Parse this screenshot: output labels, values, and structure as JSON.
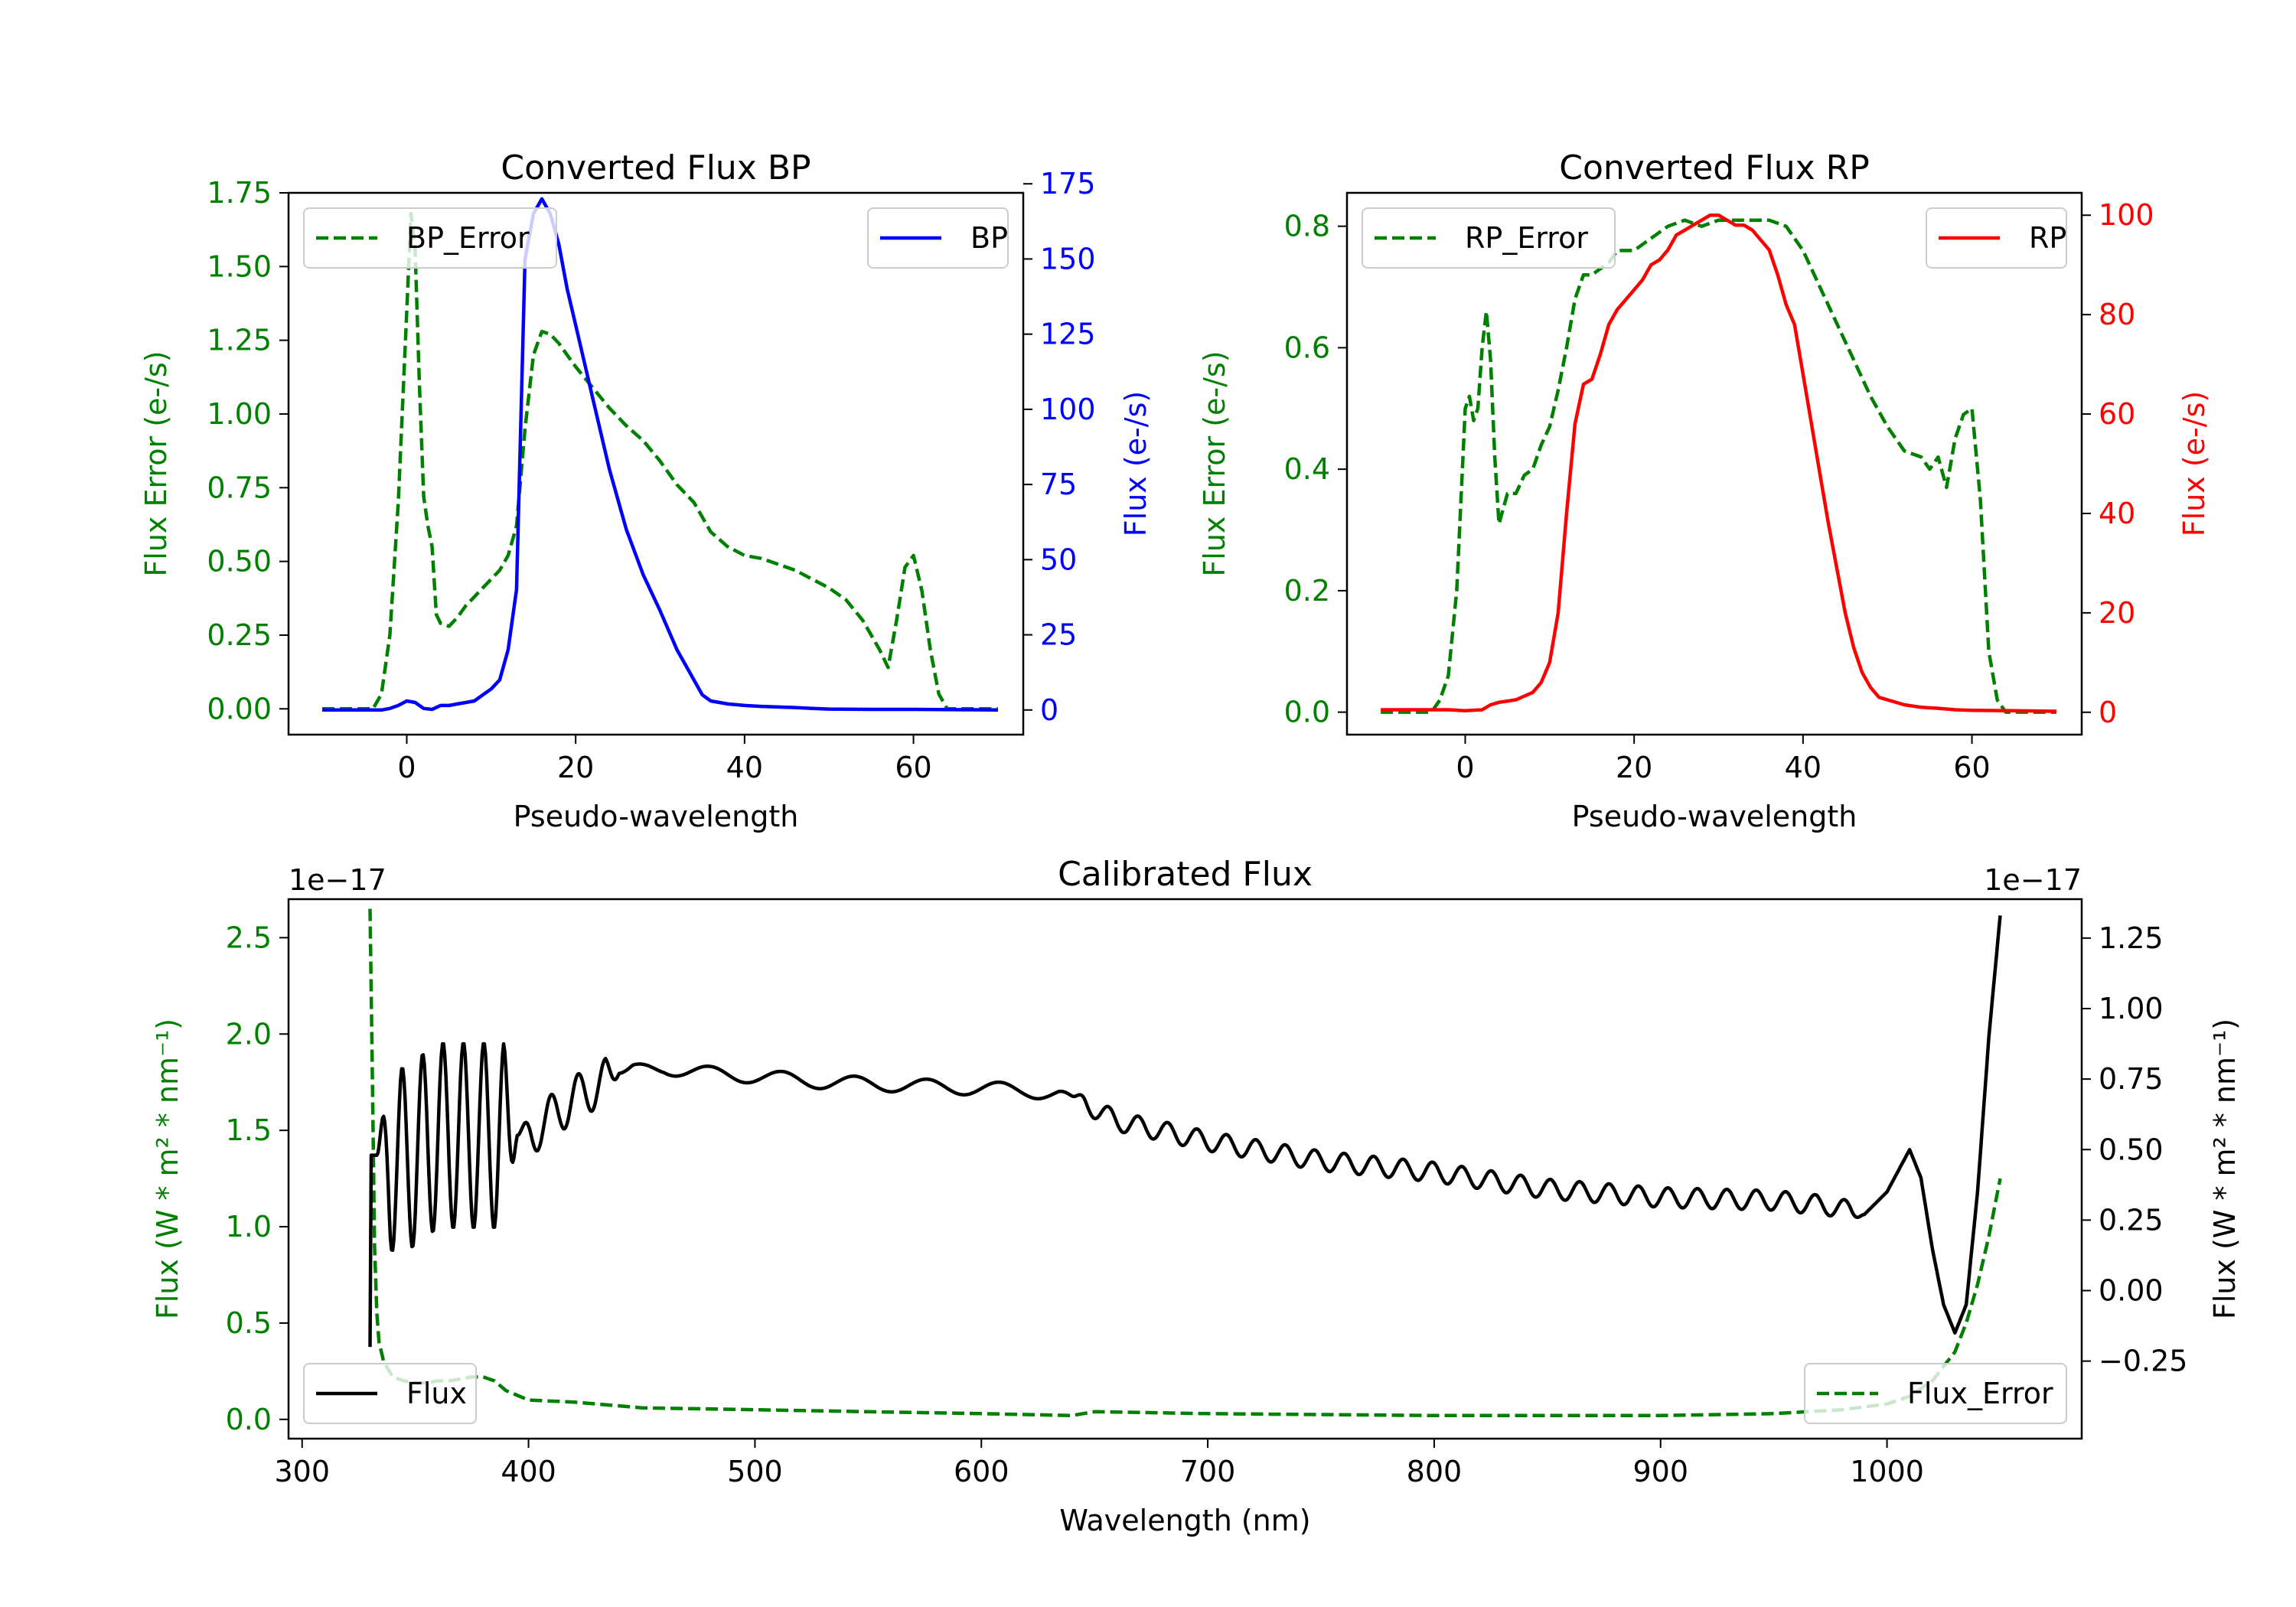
{
  "chart_data": [
    {
      "id": "bp",
      "type": "line",
      "title": "Converted Flux BP",
      "xlabel": "Pseudo-wavelength",
      "ylabel_left": "Flux Error (e-/s)",
      "ylabel_right": "Flux (e-/s)",
      "xlim": [
        -14,
        73
      ],
      "ylim_left": [
        -0.0875,
        1.75
      ],
      "ylim_right": [
        -8.2,
        172
      ],
      "xticks": [
        0,
        20,
        40,
        60
      ],
      "yticks_left": [
        0.0,
        0.25,
        0.5,
        0.75,
        1.0,
        1.25,
        1.5,
        1.75
      ],
      "yticks_left_labels": [
        "0.00",
        "0.25",
        "0.50",
        "0.75",
        "1.00",
        "1.25",
        "1.50",
        "1.75"
      ],
      "yticks_right": [
        0,
        25,
        50,
        75,
        100,
        125,
        150,
        175
      ],
      "yticks_right_labels": [
        "0",
        "25",
        "50",
        "75",
        "100",
        "125",
        "150",
        "175"
      ],
      "left_color": "#008000",
      "right_color": "#0000ff",
      "series": [
        {
          "name": "BP_Error",
          "axis": "left",
          "color": "#008000",
          "style": "dashed",
          "legend_loc": "upper left",
          "x": [
            -10,
            -4,
            -3,
            -2,
            -1,
            0,
            0.5,
            1,
            1.5,
            2,
            2.5,
            3,
            3.5,
            4,
            5,
            6,
            7,
            8,
            9,
            10,
            11,
            12,
            13,
            14,
            15,
            16,
            17,
            18,
            19,
            20,
            22,
            24,
            26,
            28,
            30,
            32,
            34,
            36,
            38,
            40,
            42,
            44,
            46,
            48,
            50,
            52,
            54,
            56,
            57,
            58,
            59,
            60,
            61,
            62,
            63,
            64,
            70
          ],
          "y": [
            0.0,
            0.0,
            0.05,
            0.25,
            0.7,
            1.35,
            1.68,
            1.55,
            1.1,
            0.72,
            0.62,
            0.55,
            0.32,
            0.29,
            0.28,
            0.31,
            0.35,
            0.38,
            0.41,
            0.44,
            0.47,
            0.52,
            0.62,
            0.95,
            1.2,
            1.28,
            1.27,
            1.24,
            1.2,
            1.16,
            1.09,
            1.02,
            0.96,
            0.91,
            0.84,
            0.76,
            0.7,
            0.6,
            0.55,
            0.52,
            0.51,
            0.49,
            0.47,
            0.44,
            0.41,
            0.37,
            0.3,
            0.2,
            0.14,
            0.3,
            0.48,
            0.52,
            0.4,
            0.2,
            0.05,
            0.0,
            0.0
          ]
        },
        {
          "name": "BP",
          "axis": "right",
          "color": "#0000ff",
          "style": "solid",
          "legend_loc": "upper right",
          "x": [
            -10,
            -3,
            -2,
            -1,
            0,
            1,
            2,
            3,
            4,
            5,
            6,
            7,
            8,
            9,
            10,
            11,
            12,
            13,
            14,
            15,
            16,
            17,
            18,
            19,
            20,
            22,
            24,
            26,
            28,
            30,
            32,
            34,
            35,
            36,
            38,
            40,
            42,
            44,
            46,
            48,
            50,
            55,
            60,
            65,
            70
          ],
          "y": [
            0,
            0,
            0.5,
            1.5,
            3,
            2.5,
            0.5,
            0.2,
            1.5,
            1.5,
            2,
            2.5,
            3,
            5,
            7,
            10,
            20,
            40,
            150,
            165,
            170,
            165,
            155,
            140,
            128,
            104,
            80,
            60,
            45,
            33,
            20,
            10,
            5,
            3,
            2,
            1.5,
            1.2,
            1,
            0.8,
            0.5,
            0.3,
            0.2,
            0.2,
            0.1,
            0
          ]
        }
      ]
    },
    {
      "id": "rp",
      "type": "line",
      "title": "Converted Flux RP",
      "xlabel": "Pseudo-wavelength",
      "ylabel_left": "Flux Error (e-/s)",
      "ylabel_right": "Flux (e-/s)",
      "xlim": [
        -14,
        73
      ],
      "ylim_left": [
        -0.037,
        0.855
      ],
      "ylim_right": [
        -4.5,
        104.5
      ],
      "xticks": [
        0,
        20,
        40,
        60
      ],
      "yticks_left": [
        0.0,
        0.2,
        0.4,
        0.6,
        0.8
      ],
      "yticks_left_labels": [
        "0.0",
        "0.2",
        "0.4",
        "0.6",
        "0.8"
      ],
      "yticks_right": [
        0,
        20,
        40,
        60,
        80,
        100
      ],
      "yticks_right_labels": [
        "0",
        "20",
        "40",
        "60",
        "80",
        "100"
      ],
      "left_color": "#008000",
      "right_color": "#ff0000",
      "series": [
        {
          "name": "RP_Error",
          "axis": "left",
          "color": "#008000",
          "style": "dashed",
          "legend_loc": "upper left",
          "x": [
            -10,
            -4,
            -3,
            -2,
            -1,
            0,
            0.5,
            1,
            1.5,
            2,
            2.5,
            3,
            3.5,
            4,
            5,
            6,
            7,
            8,
            9,
            10,
            11,
            12,
            13,
            14,
            15,
            16,
            17,
            18,
            20,
            22,
            24,
            26,
            28,
            30,
            32,
            34,
            36,
            38,
            40,
            42,
            44,
            46,
            48,
            50,
            52,
            54,
            55,
            56,
            57,
            58,
            59,
            60,
            61,
            62,
            63,
            64,
            70
          ],
          "y": [
            0.0,
            0.0,
            0.02,
            0.06,
            0.2,
            0.5,
            0.52,
            0.48,
            0.5,
            0.6,
            0.66,
            0.58,
            0.42,
            0.31,
            0.36,
            0.36,
            0.39,
            0.4,
            0.44,
            0.47,
            0.53,
            0.6,
            0.68,
            0.72,
            0.72,
            0.73,
            0.74,
            0.76,
            0.76,
            0.78,
            0.8,
            0.81,
            0.8,
            0.81,
            0.81,
            0.81,
            0.81,
            0.8,
            0.76,
            0.7,
            0.64,
            0.58,
            0.52,
            0.47,
            0.43,
            0.42,
            0.4,
            0.42,
            0.37,
            0.45,
            0.49,
            0.5,
            0.35,
            0.1,
            0.02,
            0.0,
            0.0
          ]
        },
        {
          "name": "RP",
          "axis": "right",
          "color": "#ff0000",
          "style": "solid",
          "legend_loc": "upper right",
          "x": [
            -10,
            -2,
            0,
            2,
            3,
            4,
            6,
            8,
            9,
            10,
            11,
            12,
            13,
            14,
            15,
            16,
            17,
            18,
            19,
            20,
            21,
            22,
            23,
            24,
            25,
            26,
            27,
            28,
            29,
            30,
            31,
            32,
            33,
            34,
            35,
            36,
            37,
            38,
            39,
            40,
            41,
            42,
            43,
            44,
            45,
            46,
            47,
            48,
            49,
            50,
            52,
            54,
            56,
            58,
            60,
            65,
            70
          ],
          "y": [
            0.5,
            0.5,
            0.3,
            0.5,
            1.5,
            2,
            2.5,
            4,
            6,
            10,
            20,
            40,
            58,
            66,
            67,
            72,
            78,
            81,
            83,
            85,
            87,
            90,
            91,
            93,
            96,
            97,
            98,
            99,
            100,
            100,
            99,
            98,
            98,
            97,
            95,
            93,
            88,
            82,
            78,
            68,
            58,
            48,
            38,
            29,
            20,
            13,
            8,
            5,
            3,
            2.5,
            1.5,
            1,
            0.8,
            0.5,
            0.4,
            0.3,
            0.2
          ]
        }
      ]
    },
    {
      "id": "cal",
      "type": "line",
      "title": "Calibrated Flux",
      "xlabel": "Wavelength (nm)",
      "ylabel_left": "Flux (W * m² * nm⁻¹)",
      "ylabel_right": "Flux (W * m² * nm⁻¹)",
      "offset_left": "1e−17",
      "offset_right": "1e−17",
      "xlim": [
        294,
        1086
      ],
      "ylim_left": [
        -0.1,
        2.7
      ],
      "ylim_right": [
        -0.525,
        1.388
      ],
      "xticks": [
        300,
        400,
        500,
        600,
        700,
        800,
        900,
        1000
      ],
      "yticks_left": [
        0.0,
        0.5,
        1.0,
        1.5,
        2.0,
        2.5
      ],
      "yticks_left_labels": [
        "0.0",
        "0.5",
        "1.0",
        "1.5",
        "2.0",
        "2.5"
      ],
      "yticks_right": [
        -0.25,
        0.0,
        0.25,
        0.5,
        0.75,
        1.0,
        1.25
      ],
      "yticks_right_labels": [
        "−0.25",
        "0.00",
        "0.25",
        "0.50",
        "0.75",
        "1.00",
        "1.25"
      ],
      "left_color": "#008000",
      "right_color": "#000000",
      "series": [
        {
          "name": "Flux_Error",
          "axis": "left",
          "color": "#008000",
          "style": "dashed",
          "legend_loc": "lower right",
          "x": [
            330,
            331,
            332,
            333,
            334,
            336,
            338,
            340,
            345,
            350,
            355,
            360,
            365,
            370,
            375,
            380,
            385,
            390,
            400,
            420,
            450,
            500,
            550,
            600,
            640,
            650,
            700,
            750,
            800,
            850,
            900,
            950,
            980,
            1000,
            1010,
            1020,
            1030,
            1035,
            1040,
            1045,
            1050
          ],
          "y": [
            2.65,
            1.8,
            0.9,
            0.55,
            0.4,
            0.3,
            0.26,
            0.22,
            0.2,
            0.19,
            0.19,
            0.2,
            0.2,
            0.21,
            0.22,
            0.22,
            0.2,
            0.15,
            0.1,
            0.09,
            0.06,
            0.05,
            0.04,
            0.03,
            0.02,
            0.04,
            0.03,
            0.025,
            0.02,
            0.02,
            0.02,
            0.03,
            0.05,
            0.08,
            0.12,
            0.2,
            0.35,
            0.5,
            0.7,
            0.95,
            1.25
          ]
        }
      ],
      "flux_series": {
        "name": "Flux",
        "axis": "right",
        "color": "#000000",
        "style": "solid",
        "legend_loc": "lower left",
        "x_range": [
          330,
          1050
        ],
        "baseline_x": [
          330,
          333,
          345,
          360,
          380,
          400,
          420,
          440,
          460,
          480,
          500,
          530,
          560,
          590,
          620,
          640,
          660,
          700,
          750,
          800,
          850,
          900,
          950,
          975,
          990,
          1000,
          1010,
          1015,
          1020,
          1025,
          1030,
          1035,
          1040,
          1045,
          1050
        ],
        "baseline_y": [
          0.48,
          0.48,
          0.46,
          0.55,
          0.55,
          0.55,
          0.68,
          0.77,
          0.79,
          0.77,
          0.76,
          0.74,
          0.73,
          0.72,
          0.71,
          0.69,
          0.6,
          0.53,
          0.46,
          0.42,
          0.36,
          0.33,
          0.32,
          0.3,
          0.27,
          0.35,
          0.5,
          0.4,
          0.15,
          -0.05,
          -0.15,
          -0.05,
          0.35,
          0.9,
          1.33
        ],
        "oscillations": [
          {
            "x_start": 333,
            "x_end": 395,
            "amplitude": 0.33,
            "period": 9
          },
          {
            "x_start": 395,
            "x_end": 440,
            "amplitude": 0.08,
            "period": 12
          },
          {
            "x_start": 440,
            "x_end": 640,
            "amplitude": 0.025,
            "period": 32
          },
          {
            "x_start": 640,
            "x_end": 990,
            "amplitude": 0.035,
            "period": 13
          }
        ]
      }
    }
  ],
  "legend_labels": {
    "bp_error": "BP_Error",
    "bp": "BP",
    "rp_error": "RP_Error",
    "rp": "RP",
    "flux": "Flux",
    "flux_error": "Flux_Error"
  }
}
